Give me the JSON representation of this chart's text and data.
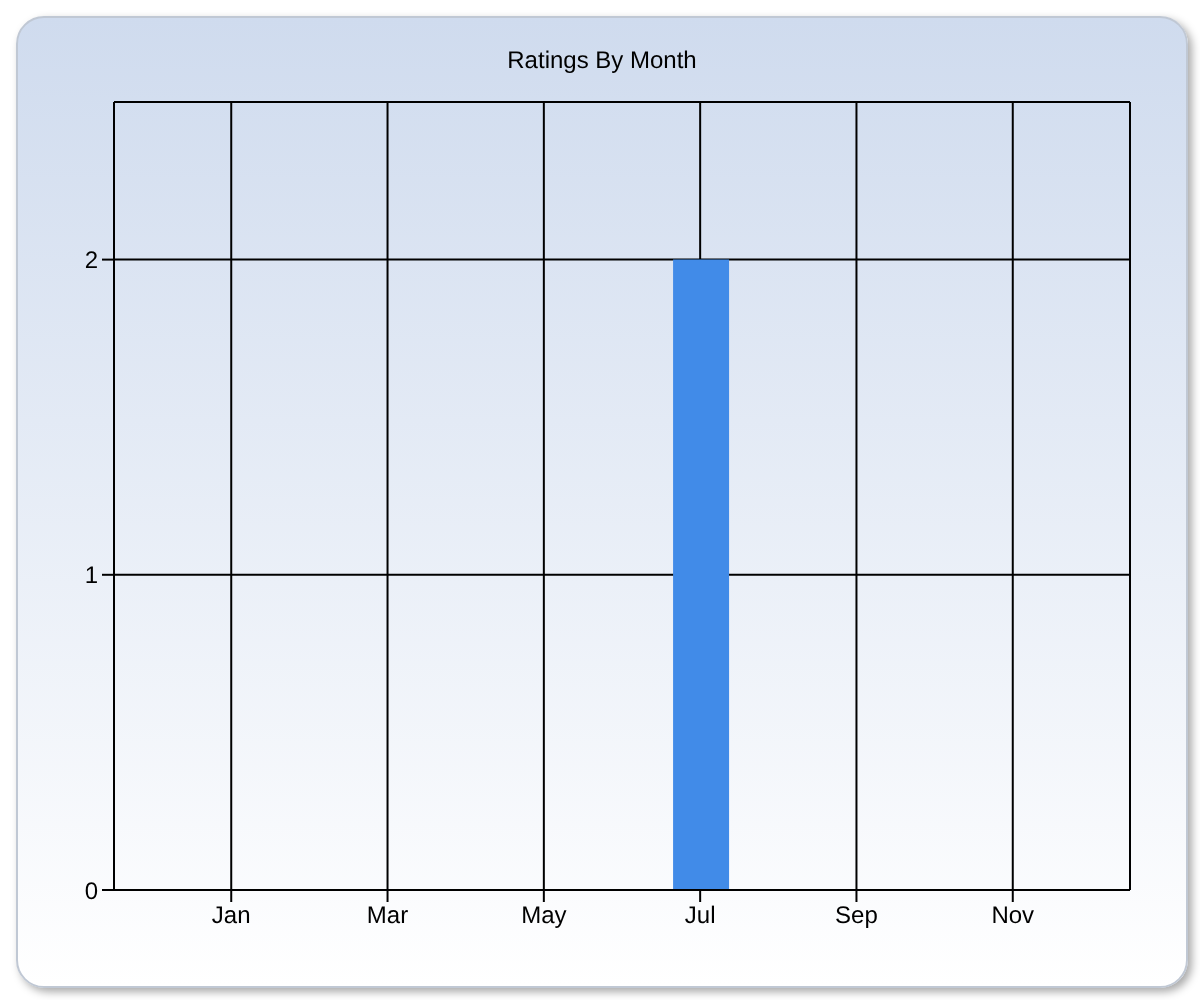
{
  "chart_data": {
    "type": "bar",
    "title": "Ratings By Month",
    "categories": [
      null,
      "Jan",
      null,
      "Mar",
      null,
      "May",
      null,
      "Jul",
      null,
      "Sep",
      null,
      "Nov",
      null
    ],
    "values": [
      0,
      0,
      0,
      0,
      0,
      0,
      0,
      2,
      0,
      0,
      0,
      0,
      0
    ],
    "color": "#418be8",
    "ylim": [
      0,
      2.5
    ],
    "yticks": [
      0,
      1,
      2
    ],
    "grid": true
  }
}
